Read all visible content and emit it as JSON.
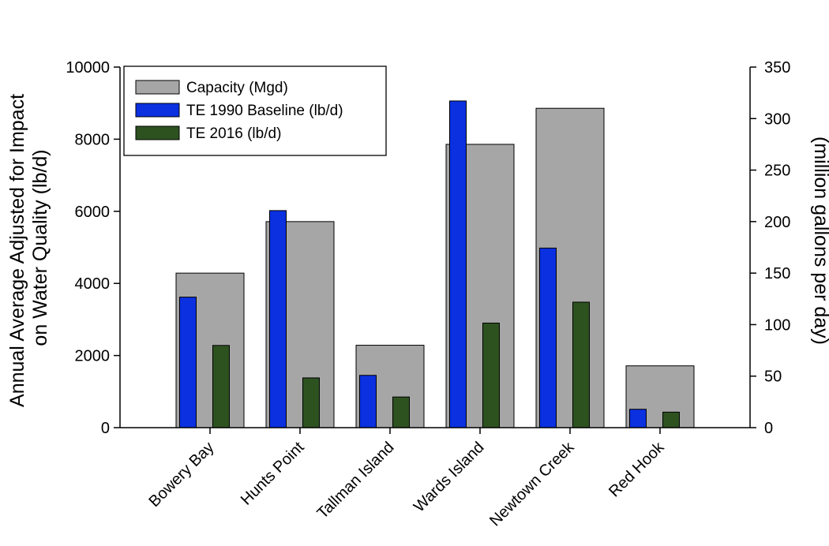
{
  "chart_data": {
    "type": "bar",
    "title": "",
    "categories": [
      "Bowery Bay",
      "Hunts Point",
      "Tallman Island",
      "Wards Island",
      "Newtown Creek",
      "Red Hook"
    ],
    "ylabel_lines": [
      "Annual Average Adjusted for Impact",
      "on Water Quality (lb/d)"
    ],
    "y2label": "(million gallons per day)",
    "ylim": [
      0,
      10000
    ],
    "y2lim": [
      0,
      350
    ],
    "yticks": [
      "0",
      "2000",
      "4000",
      "6000",
      "8000",
      "10000"
    ],
    "y2ticks": [
      "0",
      "50",
      "100",
      "150",
      "200",
      "250",
      "300",
      "350"
    ],
    "legend_position": "top-left",
    "series": [
      {
        "name": "Capacity (Mgd)",
        "axis": "right",
        "color": "#a6a6a6",
        "values": [
          150,
          200,
          80,
          275,
          310,
          60
        ]
      },
      {
        "name": "TE 1990 Baseline (lb/d)",
        "axis": "left",
        "color": "#0a30e0",
        "values": [
          3620,
          6020,
          1450,
          9060,
          4980,
          510
        ]
      },
      {
        "name": "TE 2016 (lb/d)",
        "axis": "left",
        "color": "#2d5220",
        "values": [
          2280,
          1380,
          850,
          2900,
          3480,
          430
        ]
      }
    ]
  }
}
